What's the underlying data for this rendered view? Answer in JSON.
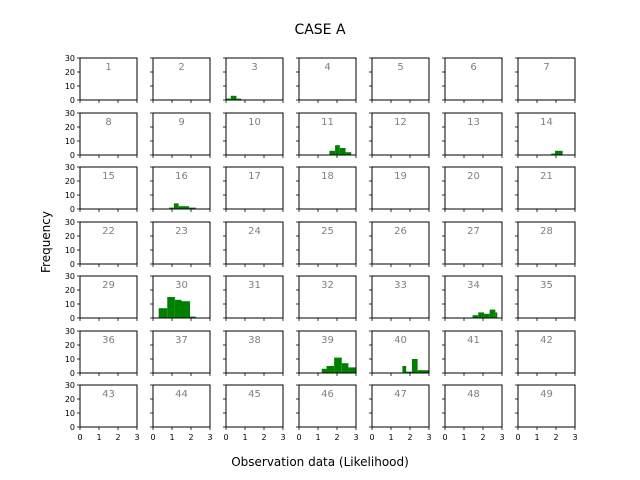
{
  "chart_data": {
    "type": "bar",
    "title": "CASE A",
    "xlabel": "Observation data (Likelihood)",
    "ylabel": "Frequency",
    "xlim": [
      0,
      3
    ],
    "ylim": [
      0,
      30
    ],
    "x_ticks": [
      "0",
      "1",
      "2",
      "3"
    ],
    "y_ticks": [
      "0",
      "10",
      "20",
      "30"
    ],
    "grid": false,
    "bar_color": "#008000",
    "rows": 7,
    "cols": 7,
    "panels": [
      {
        "label": "1",
        "bins": []
      },
      {
        "label": "2",
        "bins": []
      },
      {
        "label": "3",
        "bins": [
          [
            0.0,
            0.25,
            1
          ],
          [
            0.25,
            0.55,
            3
          ],
          [
            0.55,
            0.8,
            1
          ]
        ]
      },
      {
        "label": "4",
        "bins": []
      },
      {
        "label": "5",
        "bins": []
      },
      {
        "label": "6",
        "bins": []
      },
      {
        "label": "7",
        "bins": []
      },
      {
        "label": "8",
        "bins": []
      },
      {
        "label": "9",
        "bins": []
      },
      {
        "label": "10",
        "bins": []
      },
      {
        "label": "11",
        "bins": [
          [
            1.6,
            1.9,
            3
          ],
          [
            1.9,
            2.15,
            7
          ],
          [
            2.15,
            2.45,
            5
          ],
          [
            2.45,
            2.75,
            2
          ]
        ]
      },
      {
        "label": "12",
        "bins": []
      },
      {
        "label": "13",
        "bins": []
      },
      {
        "label": "14",
        "bins": [
          [
            1.75,
            1.95,
            1
          ],
          [
            1.95,
            2.35,
            3
          ]
        ]
      },
      {
        "label": "15",
        "bins": []
      },
      {
        "label": "16",
        "bins": [
          [
            0.85,
            1.1,
            1
          ],
          [
            1.1,
            1.35,
            4
          ],
          [
            1.35,
            1.9,
            2
          ],
          [
            1.9,
            2.25,
            1
          ]
        ]
      },
      {
        "label": "17",
        "bins": []
      },
      {
        "label": "18",
        "bins": []
      },
      {
        "label": "19",
        "bins": []
      },
      {
        "label": "20",
        "bins": []
      },
      {
        "label": "21",
        "bins": []
      },
      {
        "label": "22",
        "bins": []
      },
      {
        "label": "23",
        "bins": []
      },
      {
        "label": "24",
        "bins": []
      },
      {
        "label": "25",
        "bins": []
      },
      {
        "label": "26",
        "bins": []
      },
      {
        "label": "27",
        "bins": []
      },
      {
        "label": "28",
        "bins": []
      },
      {
        "label": "29",
        "bins": []
      },
      {
        "label": "30",
        "bins": [
          [
            0.3,
            0.75,
            7
          ],
          [
            0.75,
            1.15,
            15
          ],
          [
            1.15,
            1.5,
            13
          ],
          [
            1.5,
            1.95,
            12
          ],
          [
            1.95,
            2.25,
            1
          ]
        ]
      },
      {
        "label": "31",
        "bins": []
      },
      {
        "label": "32",
        "bins": []
      },
      {
        "label": "33",
        "bins": []
      },
      {
        "label": "34",
        "bins": [
          [
            1.45,
            1.75,
            2
          ],
          [
            1.75,
            2.05,
            4
          ],
          [
            2.05,
            2.35,
            3
          ],
          [
            2.35,
            2.65,
            6
          ],
          [
            2.65,
            2.75,
            4
          ]
        ]
      },
      {
        "label": "35",
        "bins": []
      },
      {
        "label": "36",
        "bins": []
      },
      {
        "label": "37",
        "bins": []
      },
      {
        "label": "38",
        "bins": []
      },
      {
        "label": "39",
        "bins": [
          [
            1.2,
            1.45,
            3
          ],
          [
            1.45,
            1.85,
            5
          ],
          [
            1.85,
            2.25,
            11
          ],
          [
            2.25,
            2.6,
            7
          ],
          [
            2.6,
            3.0,
            4
          ]
        ]
      },
      {
        "label": "40",
        "bins": [
          [
            1.6,
            1.8,
            5
          ],
          [
            1.8,
            2.1,
            1
          ],
          [
            2.1,
            2.4,
            10
          ],
          [
            2.4,
            3.0,
            2
          ]
        ]
      },
      {
        "label": "41",
        "bins": []
      },
      {
        "label": "42",
        "bins": []
      },
      {
        "label": "43",
        "bins": []
      },
      {
        "label": "44",
        "bins": []
      },
      {
        "label": "45",
        "bins": []
      },
      {
        "label": "46",
        "bins": []
      },
      {
        "label": "47",
        "bins": []
      },
      {
        "label": "48",
        "bins": []
      },
      {
        "label": "49",
        "bins": []
      }
    ]
  }
}
